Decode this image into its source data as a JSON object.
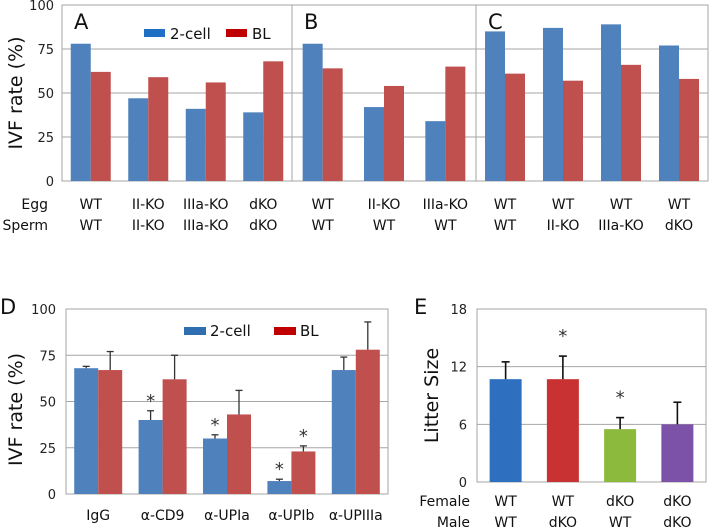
{
  "chart_data": [
    {
      "id": "ABC",
      "type": "bar",
      "ylabel": "IVF rate (%)",
      "ylim": [
        0,
        100
      ],
      "yticks": [
        "0",
        "25",
        "50",
        "75",
        "100"
      ],
      "grid": true,
      "legend": {
        "placement": "top",
        "entries": [
          "2-cell",
          "BL"
        ]
      },
      "row_labels": [
        "Egg",
        "Sperm"
      ],
      "series_names": [
        "2-cell",
        "BL"
      ],
      "colors": {
        "2-cell": "#4f81bd",
        "BL": "#c0504d",
        "legend_2cell": "#1f6fc5",
        "legend_BL": "#c00000"
      },
      "panels": [
        {
          "label": "A",
          "groups": [
            {
              "egg": "WT",
              "sperm": "WT",
              "values": [
                78,
                62
              ]
            },
            {
              "egg": "II-KO",
              "sperm": "II-KO",
              "values": [
                47,
                59
              ]
            },
            {
              "egg": "IIIa-KO",
              "sperm": "IIIa-KO",
              "values": [
                41,
                56
              ]
            },
            {
              "egg": "dKO",
              "sperm": "dKO",
              "values": [
                39,
                68
              ]
            }
          ]
        },
        {
          "label": "B",
          "groups": [
            {
              "egg": "WT",
              "sperm": "WT",
              "values": [
                78,
                64
              ]
            },
            {
              "egg": "II-KO",
              "sperm": "WT",
              "values": [
                42,
                54
              ]
            },
            {
              "egg": "IIIa-KO",
              "sperm": "WT",
              "values": [
                34,
                65
              ]
            }
          ]
        },
        {
          "label": "C",
          "groups": [
            {
              "egg": "WT",
              "sperm": "WT",
              "values": [
                85,
                61
              ]
            },
            {
              "egg": "WT",
              "sperm": "II-KO",
              "values": [
                87,
                57
              ]
            },
            {
              "egg": "WT",
              "sperm": "IIIa-KO",
              "values": [
                89,
                66
              ]
            },
            {
              "egg": "WT",
              "sperm": "dKO",
              "values": [
                77,
                58
              ]
            }
          ]
        }
      ]
    },
    {
      "id": "D",
      "label": "D",
      "type": "bar",
      "ylabel": "IVF rate (%)",
      "ylim": [
        0,
        100
      ],
      "yticks": [
        "0",
        "25",
        "50",
        "75",
        "100"
      ],
      "grid": true,
      "legend": {
        "placement": "top-right",
        "entries": [
          "2-cell",
          "BL"
        ]
      },
      "categories": [
        "IgG",
        "α-CD9",
        "α-UPIa",
        "α-UPIb",
        "α-UPIIIa"
      ],
      "series": [
        {
          "name": "2-cell",
          "values": [
            68,
            40,
            30,
            7,
            67
          ],
          "error_upper": [
            69,
            45,
            32,
            8,
            74
          ],
          "significant": [
            false,
            true,
            true,
            true,
            false
          ]
        },
        {
          "name": "BL",
          "values": [
            67,
            62,
            43,
            23,
            78
          ],
          "error_upper": [
            77,
            75,
            56,
            26,
            93
          ],
          "significant": [
            false,
            false,
            false,
            true,
            false
          ]
        }
      ],
      "significance_marker": "*"
    },
    {
      "id": "E",
      "label": "E",
      "type": "bar",
      "ylabel": "Litter Size",
      "ylim": [
        0,
        18
      ],
      "yticks": [
        "0",
        "6",
        "12",
        "18"
      ],
      "grid": true,
      "row_labels": [
        "Female",
        "Male"
      ],
      "groups": [
        {
          "female": "WT",
          "male": "WT",
          "value": 10.7,
          "error_upper": 12.5,
          "significant": false,
          "color": "#2f6fc0"
        },
        {
          "female": "WT",
          "male": "dKO",
          "value": 10.7,
          "error_upper": 13.1,
          "significant": true,
          "color": "#c83232"
        },
        {
          "female": "dKO",
          "male": "WT",
          "value": 5.5,
          "error_upper": 6.7,
          "significant": true,
          "color": "#8cba3c"
        },
        {
          "female": "dKO",
          "male": "dKO",
          "value": 6.0,
          "error_upper": 8.3,
          "significant": false,
          "color": "#7b52a8"
        }
      ],
      "significance_marker": "*"
    }
  ]
}
